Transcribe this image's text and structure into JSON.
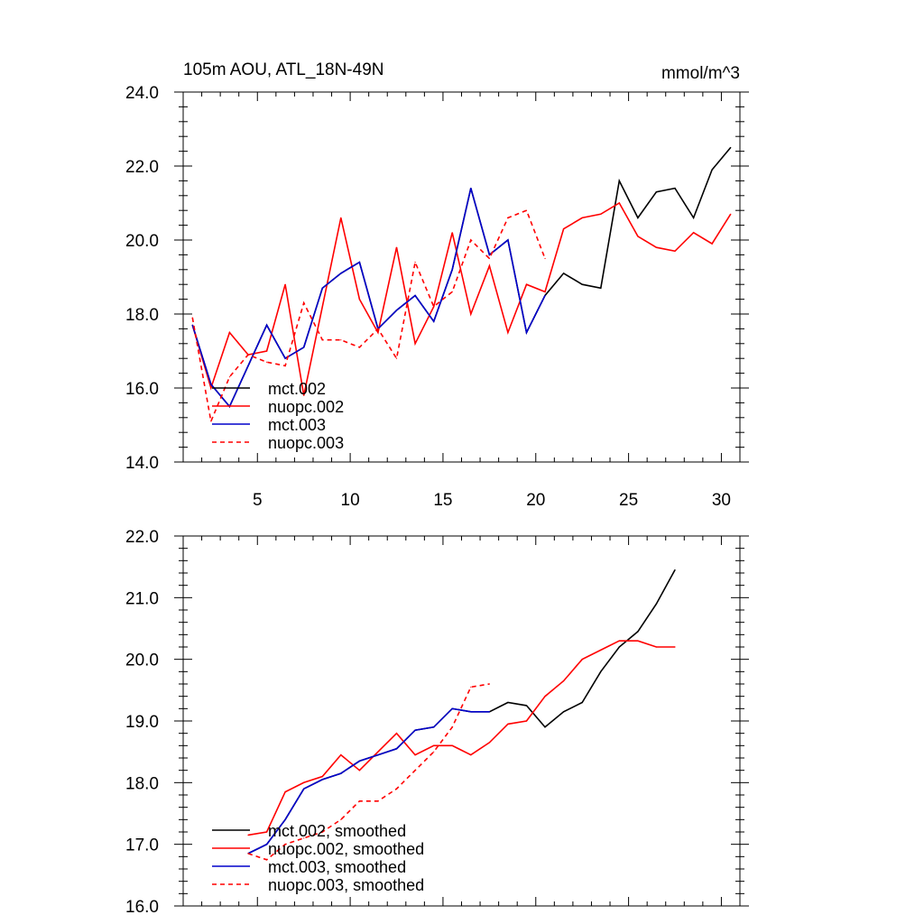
{
  "header": {
    "title": "105m AOU, ATL_18N-49N",
    "units": "mmol/m^3"
  },
  "colors": {
    "black": "#000000",
    "red": "#ff0000",
    "blue": "#0000cc",
    "axis": "#000000"
  },
  "chart_data": [
    {
      "type": "line",
      "title": "105m AOU, ATL_18N-49N",
      "units_label": "mmol/m^3",
      "xlabel": "",
      "ylabel": "",
      "xlim": [
        1,
        31
      ],
      "ylim": [
        14,
        24
      ],
      "xticks": [
        5,
        10,
        15,
        20,
        25,
        30
      ],
      "xtick_labels": [
        "5",
        "10",
        "15",
        "20",
        "25",
        "30"
      ],
      "yticks": [
        14,
        16,
        18,
        20,
        22,
        24
      ],
      "ytick_labels": [
        "14.0",
        "16.0",
        "18.0",
        "20.0",
        "22.0",
        "24.0"
      ],
      "legend_position": "bottom-left",
      "grid": false,
      "series": [
        {
          "name": "mct.002",
          "color": "#000000",
          "dash": "solid",
          "x": [
            1.5,
            2.5,
            3.5,
            4.5,
            5.5,
            6.5,
            7.5,
            8.5,
            9.5,
            10.5,
            11.5,
            12.5,
            13.5,
            14.5,
            15.5,
            16.5,
            17.5,
            18.5,
            19.5,
            20.5,
            21.5,
            22.5,
            23.5,
            24.5,
            25.5,
            26.5,
            27.5,
            28.5,
            29.5,
            30.5
          ],
          "y": [
            17.7,
            16.1,
            15.5,
            16.6,
            17.7,
            16.8,
            17.1,
            18.7,
            19.1,
            19.4,
            17.6,
            18.1,
            18.5,
            17.8,
            19.2,
            21.4,
            19.6,
            20.0,
            17.5,
            18.5,
            19.1,
            18.8,
            18.7,
            21.6,
            20.6,
            21.3,
            21.4,
            20.6,
            21.9,
            22.5
          ]
        },
        {
          "name": "nuopc.002",
          "color": "#ff0000",
          "dash": "solid",
          "x": [
            1.5,
            2.5,
            3.5,
            4.5,
            5.5,
            6.5,
            7.5,
            8.5,
            9.5,
            10.5,
            11.5,
            12.5,
            13.5,
            14.5,
            15.5,
            16.5,
            17.5,
            18.5,
            19.5,
            20.5,
            21.5,
            22.5,
            23.5,
            24.5,
            25.5,
            26.5,
            27.5,
            28.5,
            29.5,
            30.5
          ],
          "y": [
            17.7,
            16.0,
            17.5,
            16.9,
            17.0,
            18.8,
            15.8,
            18.2,
            20.6,
            18.4,
            17.5,
            19.8,
            17.2,
            18.2,
            20.2,
            18.0,
            19.3,
            17.5,
            18.8,
            18.6,
            20.3,
            20.6,
            20.7,
            21.0,
            20.1,
            19.8,
            19.7,
            20.2,
            19.9,
            20.7
          ]
        },
        {
          "name": "mct.003",
          "color": "#0000cc",
          "dash": "solid",
          "x": [
            1.5,
            2.5,
            3.5,
            4.5,
            5.5,
            6.5,
            7.5,
            8.5,
            9.5,
            10.5,
            11.5,
            12.5,
            13.5,
            14.5,
            15.5,
            16.5,
            17.5,
            18.5,
            19.5,
            20.5
          ],
          "y": [
            17.7,
            16.1,
            15.5,
            16.6,
            17.7,
            16.8,
            17.1,
            18.7,
            19.1,
            19.4,
            17.6,
            18.1,
            18.5,
            17.8,
            19.2,
            21.4,
            19.6,
            20.0,
            17.5,
            18.5
          ]
        },
        {
          "name": "nuopc.003",
          "color": "#ff0000",
          "dash": "dashed",
          "x": [
            1.5,
            2.5,
            3.5,
            4.5,
            5.5,
            6.5,
            7.5,
            8.5,
            9.5,
            10.5,
            11.5,
            12.5,
            13.5,
            14.5,
            15.5,
            16.5,
            17.5,
            18.5,
            19.5,
            20.5
          ],
          "y": [
            17.9,
            15.1,
            16.3,
            16.9,
            16.7,
            16.6,
            18.3,
            17.3,
            17.3,
            17.1,
            17.6,
            16.8,
            19.4,
            18.2,
            18.6,
            20.0,
            19.5,
            20.6,
            20.8,
            19.5
          ]
        }
      ]
    },
    {
      "type": "line",
      "title": "",
      "xlabel": "",
      "ylabel": "",
      "xlim": [
        1,
        31
      ],
      "ylim": [
        16,
        22
      ],
      "xticks": [
        5,
        10,
        15,
        20,
        25,
        30
      ],
      "xtick_labels": [],
      "yticks": [
        16,
        17,
        18,
        19,
        20,
        21,
        22
      ],
      "ytick_labels": [
        "16.0",
        "17.0",
        "18.0",
        "19.0",
        "20.0",
        "21.0",
        "22.0"
      ],
      "legend_position": "bottom-left",
      "grid": false,
      "series": [
        {
          "name": "mct.002, smoothed",
          "color": "#000000",
          "dash": "solid",
          "x": [
            4.5,
            5.5,
            6.5,
            7.5,
            8.5,
            9.5,
            10.5,
            11.5,
            12.5,
            13.5,
            14.5,
            15.5,
            16.5,
            17.5,
            18.5,
            19.5,
            20.5,
            21.5,
            22.5,
            23.5,
            24.5,
            25.5,
            26.5,
            27.5
          ],
          "y": [
            16.85,
            17.0,
            17.4,
            17.9,
            18.05,
            18.15,
            18.35,
            18.45,
            18.55,
            18.85,
            18.9,
            19.2,
            19.15,
            19.15,
            19.3,
            19.25,
            18.9,
            19.15,
            19.3,
            19.8,
            20.2,
            20.45,
            20.9,
            21.45
          ]
        },
        {
          "name": "nuopc.002, smoothed",
          "color": "#ff0000",
          "dash": "solid",
          "x": [
            4.5,
            5.5,
            6.5,
            7.5,
            8.5,
            9.5,
            10.5,
            11.5,
            12.5,
            13.5,
            14.5,
            15.5,
            16.5,
            17.5,
            18.5,
            19.5,
            20.5,
            21.5,
            22.5,
            23.5,
            24.5,
            25.5,
            26.5,
            27.5
          ],
          "y": [
            17.15,
            17.2,
            17.85,
            18.0,
            18.1,
            18.45,
            18.2,
            18.5,
            18.8,
            18.45,
            18.6,
            18.6,
            18.45,
            18.65,
            18.95,
            19.0,
            19.4,
            19.65,
            20.0,
            20.15,
            20.3,
            20.3,
            20.2,
            20.2
          ]
        },
        {
          "name": "mct.003, smoothed",
          "color": "#0000cc",
          "dash": "solid",
          "x": [
            4.5,
            5.5,
            6.5,
            7.5,
            8.5,
            9.5,
            10.5,
            11.5,
            12.5,
            13.5,
            14.5,
            15.5,
            16.5,
            17.5
          ],
          "y": [
            16.85,
            17.0,
            17.4,
            17.9,
            18.05,
            18.15,
            18.35,
            18.45,
            18.55,
            18.85,
            18.9,
            19.2,
            19.15,
            19.15
          ]
        },
        {
          "name": "nuopc.003, smoothed",
          "color": "#ff0000",
          "dash": "dashed",
          "x": [
            4.5,
            5.5,
            6.5,
            7.5,
            8.5,
            9.5,
            10.5,
            11.5,
            12.5,
            13.5,
            14.5,
            15.5,
            16.5,
            17.5
          ],
          "y": [
            16.85,
            16.75,
            17.0,
            17.1,
            17.2,
            17.4,
            17.7,
            17.7,
            17.9,
            18.2,
            18.5,
            18.9,
            19.55,
            19.6
          ]
        }
      ]
    }
  ]
}
